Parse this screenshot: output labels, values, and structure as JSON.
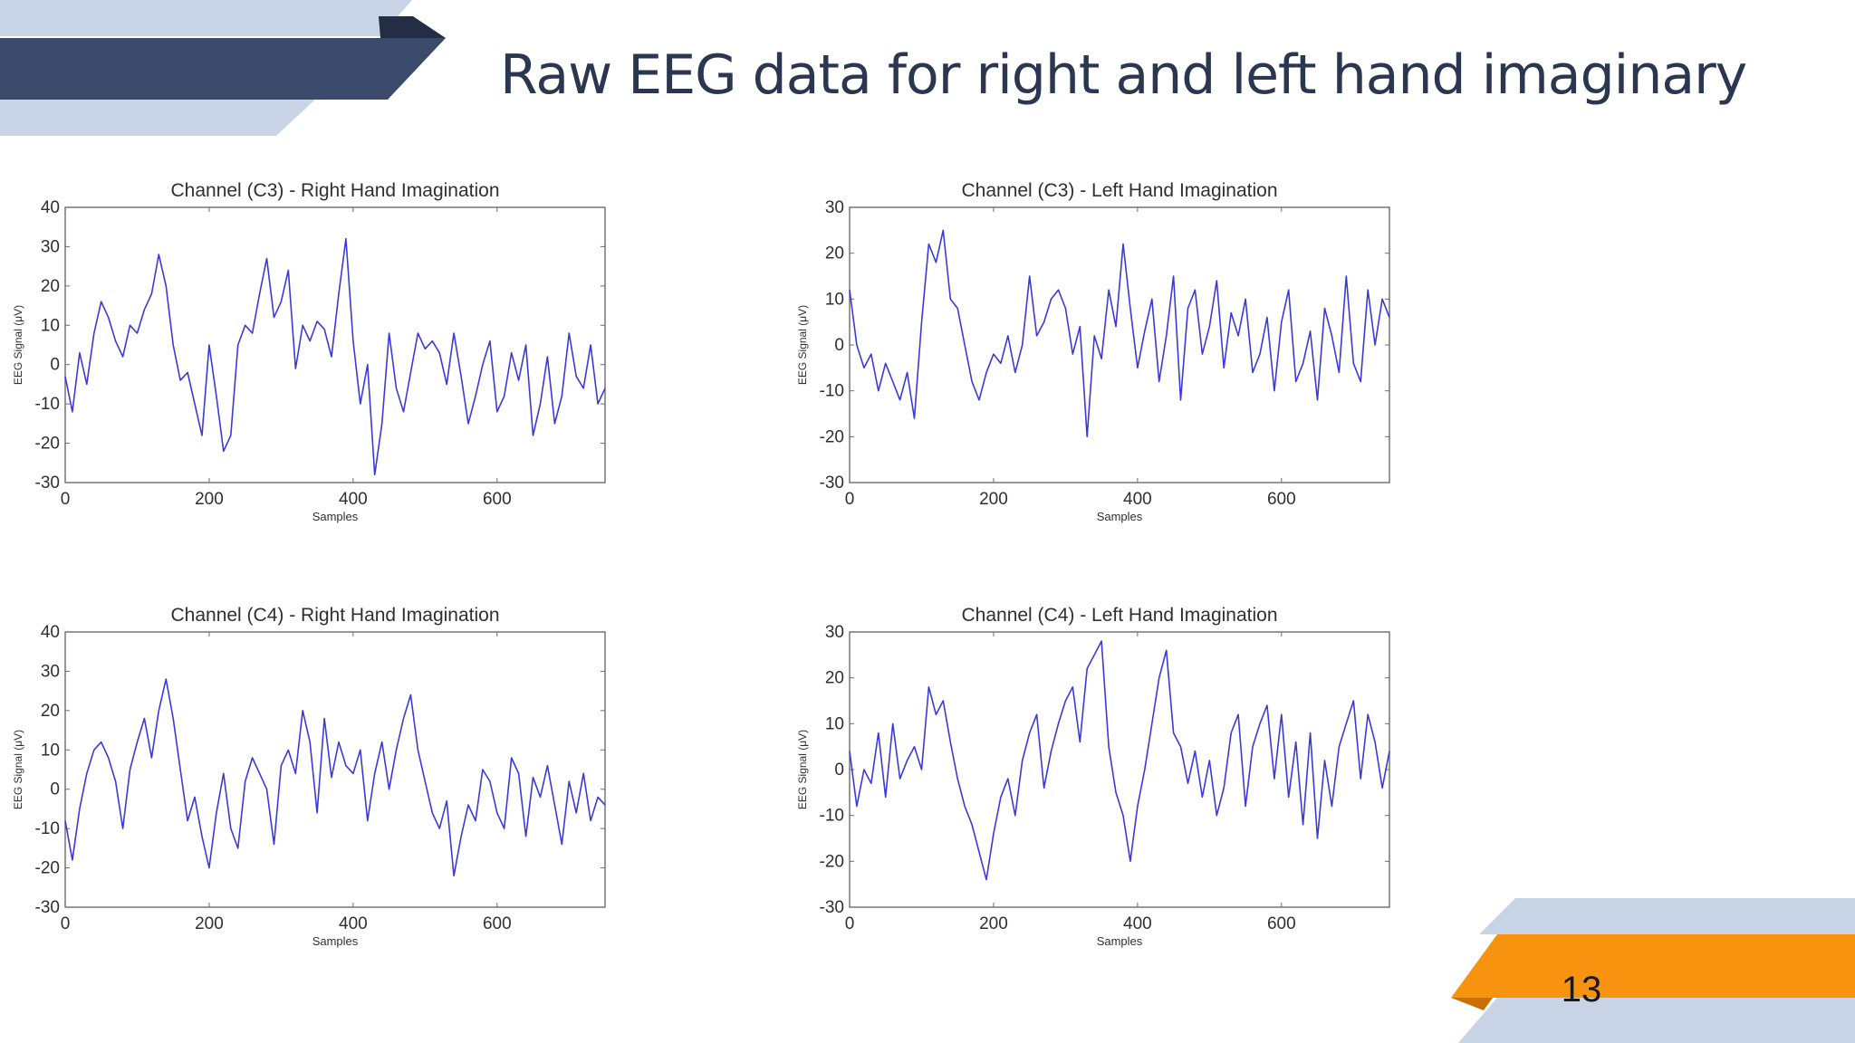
{
  "slide": {
    "title": "Raw EEG data for right and left hand imaginary",
    "page_number": "13"
  },
  "colors": {
    "navy": "#3b4a6b",
    "light_blue": "#c9d3e6",
    "orange": "#f7930f",
    "dark_orange": "#c96f06",
    "title_text": "#2b3650",
    "signal": "#3a3ad8"
  },
  "chart_data": [
    {
      "type": "line",
      "title": "Channel (C3) - Right Hand Imagination",
      "xlabel": "Samples",
      "ylabel": "EEG Signal (μV)",
      "xlim": [
        0,
        750
      ],
      "ylim": [
        -30,
        40
      ],
      "xticks": [
        "0",
        "200",
        "400",
        "600"
      ],
      "yticks": [
        "40",
        "30",
        "20",
        "10",
        "0",
        "-10",
        "-20",
        "-30"
      ],
      "grid": false,
      "series": [
        {
          "x": [
            0,
            10,
            20,
            30,
            40,
            50,
            60,
            70,
            80,
            90,
            100,
            110,
            120,
            130,
            140,
            150,
            160,
            170,
            180,
            190,
            200,
            210,
            220,
            230,
            240,
            250,
            260,
            270,
            280,
            290,
            300,
            310,
            320,
            330,
            340,
            350,
            360,
            370,
            380,
            390,
            400,
            410,
            420,
            430,
            440,
            450,
            460,
            470,
            480,
            490,
            500,
            510,
            520,
            530,
            540,
            550,
            560,
            570,
            580,
            590,
            600,
            610,
            620,
            630,
            640,
            650,
            660,
            670,
            680,
            690,
            700,
            710,
            720,
            730,
            740,
            750
          ],
          "y": [
            -3,
            -12,
            3,
            -5,
            8,
            16,
            12,
            6,
            2,
            10,
            8,
            14,
            18,
            28,
            20,
            5,
            -4,
            -2,
            -10,
            -18,
            5,
            -8,
            -22,
            -18,
            5,
            10,
            8,
            18,
            27,
            12,
            16,
            24,
            -1,
            10,
            6,
            11,
            9,
            2,
            18,
            32,
            6,
            -10,
            0,
            -28,
            -15,
            8,
            -6,
            -12,
            -2,
            8,
            4,
            6,
            3,
            -5,
            8,
            -3,
            -15,
            -8,
            0,
            6,
            -12,
            -8,
            3,
            -4,
            5,
            -18,
            -10,
            2,
            -15,
            -8,
            8,
            -3,
            -6,
            5,
            -10,
            -6
          ]
        }
      ]
    },
    {
      "type": "line",
      "title": "Channel (C3) - Left Hand Imagination",
      "xlabel": "Samples",
      "ylabel": "EEG Signal (μV)",
      "xlim": [
        0,
        750
      ],
      "ylim": [
        -30,
        30
      ],
      "xticks": [
        "0",
        "200",
        "400",
        "600"
      ],
      "yticks": [
        "30",
        "20",
        "10",
        "0",
        "-10",
        "-20",
        "-30"
      ],
      "grid": false,
      "series": [
        {
          "x": [
            0,
            10,
            20,
            30,
            40,
            50,
            60,
            70,
            80,
            90,
            100,
            110,
            120,
            130,
            140,
            150,
            160,
            170,
            180,
            190,
            200,
            210,
            220,
            230,
            240,
            250,
            260,
            270,
            280,
            290,
            300,
            310,
            320,
            330,
            340,
            350,
            360,
            370,
            380,
            390,
            400,
            410,
            420,
            430,
            440,
            450,
            460,
            470,
            480,
            490,
            500,
            510,
            520,
            530,
            540,
            550,
            560,
            570,
            580,
            590,
            600,
            610,
            620,
            630,
            640,
            650,
            660,
            670,
            680,
            690,
            700,
            710,
            720,
            730,
            740,
            750
          ],
          "y": [
            12,
            0,
            -5,
            -2,
            -10,
            -4,
            -8,
            -12,
            -6,
            -16,
            5,
            22,
            18,
            25,
            10,
            8,
            0,
            -8,
            -12,
            -6,
            -2,
            -4,
            2,
            -6,
            0,
            15,
            2,
            5,
            10,
            12,
            8,
            -2,
            4,
            -20,
            2,
            -3,
            12,
            4,
            22,
            8,
            -5,
            3,
            10,
            -8,
            2,
            15,
            -12,
            8,
            12,
            -2,
            4,
            14,
            -5,
            7,
            2,
            10,
            -6,
            -2,
            6,
            -10,
            5,
            12,
            -8,
            -4,
            3,
            -12,
            8,
            2,
            -6,
            15,
            -4,
            -8,
            12,
            0,
            10,
            6
          ]
        }
      ]
    },
    {
      "type": "line",
      "title": "Channel (C4) - Right Hand Imagination",
      "xlabel": "Samples",
      "ylabel": "EEG Signal (μV)",
      "xlim": [
        0,
        750
      ],
      "ylim": [
        -30,
        40
      ],
      "xticks": [
        "0",
        "200",
        "400",
        "600"
      ],
      "yticks": [
        "40",
        "30",
        "20",
        "10",
        "0",
        "-10",
        "-20",
        "-30"
      ],
      "grid": false,
      "series": [
        {
          "x": [
            0,
            10,
            20,
            30,
            40,
            50,
            60,
            70,
            80,
            90,
            100,
            110,
            120,
            130,
            140,
            150,
            160,
            170,
            180,
            190,
            200,
            210,
            220,
            230,
            240,
            250,
            260,
            270,
            280,
            290,
            300,
            310,
            320,
            330,
            340,
            350,
            360,
            370,
            380,
            390,
            400,
            410,
            420,
            430,
            440,
            450,
            460,
            470,
            480,
            490,
            500,
            510,
            520,
            530,
            540,
            550,
            560,
            570,
            580,
            590,
            600,
            610,
            620,
            630,
            640,
            650,
            660,
            670,
            680,
            690,
            700,
            710,
            720,
            730,
            740,
            750
          ],
          "y": [
            -8,
            -18,
            -5,
            4,
            10,
            12,
            8,
            2,
            -10,
            5,
            12,
            18,
            8,
            20,
            28,
            18,
            5,
            -8,
            -2,
            -12,
            -20,
            -6,
            4,
            -10,
            -15,
            2,
            8,
            4,
            0,
            -14,
            6,
            10,
            4,
            20,
            12,
            -6,
            18,
            3,
            12,
            6,
            4,
            10,
            -8,
            4,
            12,
            0,
            10,
            18,
            24,
            10,
            2,
            -6,
            -10,
            -3,
            -22,
            -12,
            -4,
            -8,
            5,
            2,
            -6,
            -10,
            8,
            4,
            -12,
            3,
            -2,
            6,
            -4,
            -14,
            2,
            -6,
            4,
            -8,
            -2,
            -4
          ]
        }
      ]
    },
    {
      "type": "line",
      "title": "Channel (C4) - Left Hand Imagination",
      "xlabel": "Samples",
      "ylabel": "EEG Signal (μV)",
      "xlim": [
        0,
        750
      ],
      "ylim": [
        -30,
        30
      ],
      "xticks": [
        "0",
        "200",
        "400",
        "600"
      ],
      "yticks": [
        "30",
        "20",
        "10",
        "0",
        "-10",
        "-20",
        "-30"
      ],
      "grid": false,
      "series": [
        {
          "x": [
            0,
            10,
            20,
            30,
            40,
            50,
            60,
            70,
            80,
            90,
            100,
            110,
            120,
            130,
            140,
            150,
            160,
            170,
            180,
            190,
            200,
            210,
            220,
            230,
            240,
            250,
            260,
            270,
            280,
            290,
            300,
            310,
            320,
            330,
            340,
            350,
            360,
            370,
            380,
            390,
            400,
            410,
            420,
            430,
            440,
            450,
            460,
            470,
            480,
            490,
            500,
            510,
            520,
            530,
            540,
            550,
            560,
            570,
            580,
            590,
            600,
            610,
            620,
            630,
            640,
            650,
            660,
            670,
            680,
            690,
            700,
            710,
            720,
            730,
            740,
            750
          ],
          "y": [
            4,
            -8,
            0,
            -3,
            8,
            -6,
            10,
            -2,
            2,
            5,
            0,
            18,
            12,
            15,
            6,
            -2,
            -8,
            -12,
            -18,
            -24,
            -14,
            -6,
            -2,
            -10,
            2,
            8,
            12,
            -4,
            4,
            10,
            15,
            18,
            6,
            22,
            25,
            28,
            5,
            -5,
            -10,
            -20,
            -8,
            0,
            10,
            20,
            26,
            8,
            5,
            -3,
            4,
            -6,
            2,
            -10,
            -4,
            8,
            12,
            -8,
            5,
            10,
            14,
            -2,
            12,
            -6,
            6,
            -12,
            8,
            -15,
            2,
            -8,
            5,
            10,
            15,
            -2,
            12,
            6,
            -4,
            4
          ]
        }
      ]
    }
  ]
}
